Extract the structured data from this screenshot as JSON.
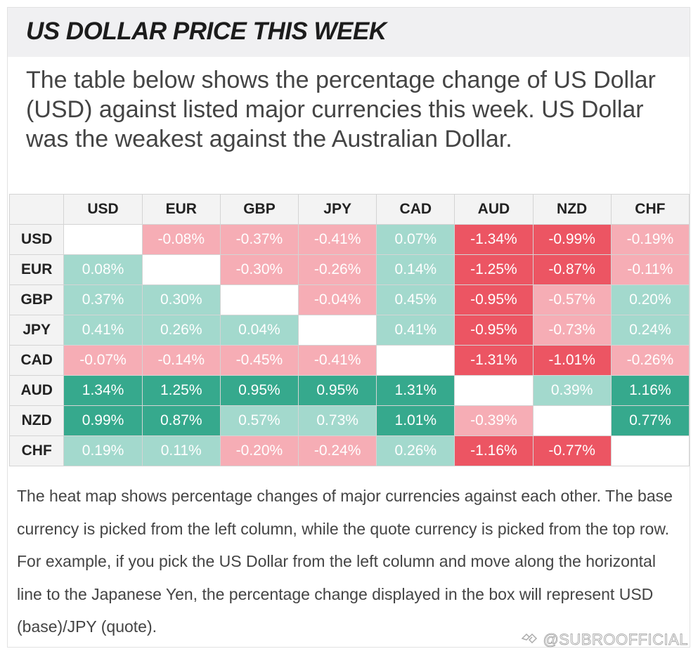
{
  "title": "US DOLLAR PRICE THIS WEEK",
  "intro": "The table below shows the percentage change of US Dollar (USD) against listed major currencies this week. US Dollar was the weakest against the Australian Dollar.",
  "description": "The heat map shows percentage changes of major currencies against each other. The base currency is picked from the left column, while the quote currency is picked from the top row. For example, if you pick the US Dollar from the left column and move along the horizontal line to the Japanese Yen, the percentage change displayed in the box will represent USD (base)/JPY (quote).",
  "watermark": "@SUBROOFFICIAL",
  "colors": {
    "strong_positive": "#36a98d",
    "positive": "#a3d9cd",
    "negative": "#f6adb5",
    "strong_negative": "#ec5563",
    "empty": "#ffffff"
  },
  "chart_data": {
    "type": "heatmap",
    "unit": "%",
    "columns": [
      "USD",
      "EUR",
      "GBP",
      "JPY",
      "CAD",
      "AUD",
      "NZD",
      "CHF"
    ],
    "rows": [
      "USD",
      "EUR",
      "GBP",
      "JPY",
      "CAD",
      "AUD",
      "NZD",
      "CHF"
    ],
    "values": [
      [
        null,
        -0.08,
        -0.37,
        -0.41,
        0.07,
        -1.34,
        -0.99,
        -0.19
      ],
      [
        0.08,
        null,
        -0.3,
        -0.26,
        0.14,
        -1.25,
        -0.87,
        -0.11
      ],
      [
        0.37,
        0.3,
        null,
        -0.04,
        0.45,
        -0.95,
        -0.57,
        0.2
      ],
      [
        0.41,
        0.26,
        0.04,
        null,
        0.41,
        -0.95,
        -0.73,
        0.24
      ],
      [
        -0.07,
        -0.14,
        -0.45,
        -0.41,
        null,
        -1.31,
        -1.01,
        -0.26
      ],
      [
        1.34,
        1.25,
        0.95,
        0.95,
        1.31,
        null,
        0.39,
        1.16
      ],
      [
        0.99,
        0.87,
        0.57,
        0.73,
        1.01,
        -0.39,
        null,
        0.77
      ],
      [
        0.19,
        0.11,
        -0.2,
        -0.24,
        0.26,
        -1.16,
        -0.77,
        null
      ]
    ]
  }
}
